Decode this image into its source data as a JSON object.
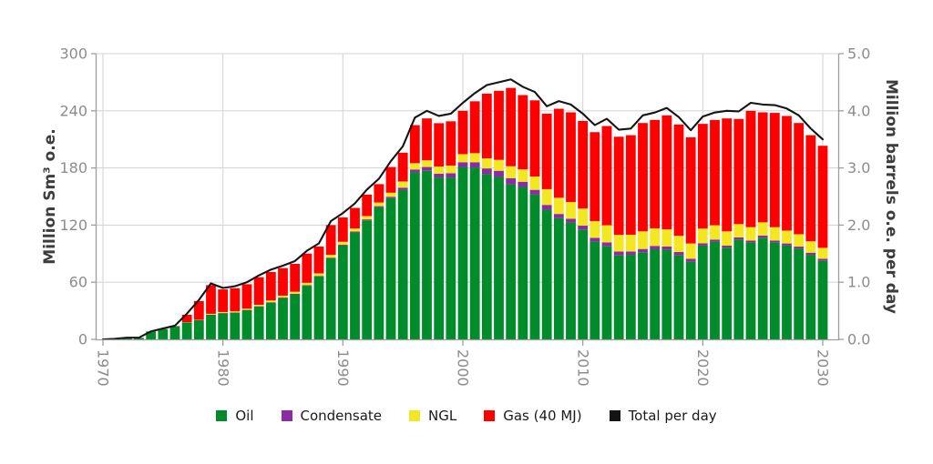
{
  "figure": {
    "background": "#ffffff"
  },
  "chart_data": {
    "type": "bar",
    "stacked": true,
    "title": "",
    "x": [
      1970,
      1971,
      1972,
      1973,
      1974,
      1975,
      1976,
      1977,
      1978,
      1979,
      1980,
      1981,
      1982,
      1983,
      1984,
      1985,
      1986,
      1987,
      1988,
      1989,
      1990,
      1991,
      1992,
      1993,
      1994,
      1995,
      1996,
      1997,
      1998,
      1999,
      2000,
      2001,
      2002,
      2003,
      2004,
      2005,
      2006,
      2007,
      2008,
      2009,
      2010,
      2011,
      2012,
      2013,
      2014,
      2015,
      2016,
      2017,
      2018,
      2019,
      2020,
      2021,
      2022,
      2023,
      2024,
      2025,
      2026,
      2027,
      2028,
      2029,
      2030
    ],
    "series": [
      {
        "name": "Oil",
        "color": "#008c2b",
        "values": [
          0,
          0.3,
          1.5,
          1.6,
          8.3,
          10.5,
          13.7,
          17.9,
          20.1,
          25.9,
          27.5,
          28.1,
          30.7,
          34.5,
          38.6,
          43.4,
          47.3,
          56.3,
          65.9,
          85,
          98.5,
          112.2,
          124.9,
          138.7,
          148.3,
          156.8,
          175.4,
          177,
          170,
          170,
          181,
          180.5,
          173.5,
          170.5,
          162.8,
          160,
          152,
          136.2,
          127.2,
          122.7,
          115.4,
          102.6,
          97.8,
          88.2,
          88.8,
          91.4,
          94.6,
          94,
          88.2,
          81.4,
          98.5,
          102.6,
          96.2,
          104.8,
          101.6,
          106.7,
          101.6,
          98.5,
          95.2,
          88.8,
          82.4
        ]
      },
      {
        "name": "Condensate",
        "color": "#8c2ba6",
        "values": [
          0,
          0,
          0,
          0,
          0,
          0,
          0,
          0,
          0,
          0.1,
          0.2,
          0.2,
          0.3,
          0.3,
          0.4,
          0.5,
          0.5,
          0.6,
          0.7,
          0.8,
          0.9,
          1,
          1.1,
          1.2,
          1.5,
          2.5,
          3,
          4,
          4,
          4.5,
          5,
          5.5,
          6,
          6.5,
          6.5,
          5.5,
          5,
          5,
          4.5,
          4,
          4,
          4,
          4,
          4,
          3.5,
          3.5,
          3.5,
          3.5,
          3.5,
          3.3,
          2.3,
          2.2,
          2.2,
          2.2,
          2.2,
          2.2,
          2.2,
          2.2,
          2.2,
          2.2,
          2.2
        ]
      },
      {
        "name": "NGL",
        "color": "#f2e720",
        "values": [
          0,
          0,
          0,
          0,
          0,
          0,
          0,
          0.2,
          0.4,
          0.8,
          1,
          1.1,
          1.2,
          1.5,
          1.8,
          2,
          2.2,
          2.5,
          2.7,
          3,
          3.1,
          3.2,
          3.5,
          3.8,
          4.2,
          6.5,
          6.6,
          7,
          7.5,
          8,
          8.5,
          9.5,
          10.5,
          11.5,
          12.5,
          13,
          14,
          16.5,
          17,
          17.5,
          18,
          17.5,
          18,
          17.5,
          17.5,
          18.5,
          18.5,
          18,
          17,
          16,
          15.5,
          15,
          15,
          14,
          14,
          14,
          14,
          13.5,
          13,
          12,
          11.5
        ]
      },
      {
        "name": "Gas (40 MJ)",
        "color": "#ff0000",
        "values": [
          0,
          0,
          0,
          0,
          0,
          0.3,
          0.3,
          7.8,
          19.8,
          30.1,
          23.8,
          24.3,
          25.7,
          28.9,
          29.9,
          28.9,
          29.3,
          30.6,
          28.2,
          31.2,
          25.5,
          21.6,
          22.5,
          19.3,
          27,
          30.2,
          40,
          44,
          45.5,
          46.5,
          45.5,
          54.5,
          68,
          72.5,
          82.2,
          78,
          80,
          79.3,
          93.5,
          94.2,
          92,
          93.5,
          104.2,
          103.1,
          104.6,
          113.8,
          113.8,
          119.7,
          116.9,
          111.5,
          110,
          110.6,
          118.6,
          110.4,
          122.2,
          115.5,
          120,
          120.4,
          116.8,
          111.4,
          107.2
        ]
      }
    ],
    "line_series": {
      "name": "Total per day",
      "color": "#141414",
      "axis": "right",
      "values": [
        0,
        0.01,
        0.03,
        0.03,
        0.14,
        0.19,
        0.24,
        0.45,
        0.69,
        0.98,
        0.9,
        0.93,
        1,
        1.12,
        1.22,
        1.29,
        1.37,
        1.55,
        1.68,
        2.07,
        2.21,
        2.38,
        2.62,
        2.81,
        3.12,
        3.38,
        3.88,
        4,
        3.91,
        3.95,
        4.14,
        4.31,
        4.45,
        4.5,
        4.55,
        4.42,
        4.33,
        4.08,
        4.17,
        4.11,
        3.95,
        3.75,
        3.86,
        3.67,
        3.69,
        3.92,
        3.97,
        4.05,
        3.89,
        3.66,
        3.9,
        3.97,
        4,
        3.99,
        4.14,
        4.11,
        4.1,
        4.04,
        3.92,
        3.69,
        3.5
      ]
    },
    "left_axis": {
      "label": "Million Sm³ o.e.",
      "min": 0,
      "max": 300,
      "ticks": [
        "0",
        "60",
        "120",
        "180",
        "240",
        "300"
      ],
      "tick_values": [
        0,
        60,
        120,
        180,
        240,
        300
      ]
    },
    "right_axis": {
      "label": "Million barrels o.e. per day",
      "min": 0,
      "max": 5,
      "ticks": [
        "0.0",
        "1.0",
        "2.0",
        "3.0",
        "4.0",
        "5.0"
      ],
      "tick_values": [
        0,
        1,
        2,
        3,
        4,
        5
      ]
    },
    "x_axis": {
      "tick_years": [
        1970,
        1980,
        1990,
        2000,
        2010,
        2020,
        2030
      ],
      "label_rotation": 90
    },
    "grid": true,
    "legend_position": "bottom"
  },
  "style_colors": {
    "grid": "#d6d6d6",
    "spine": "#9e9e9e",
    "tick_label": "#8c8c8c",
    "axis_title": "#3d3d3d",
    "legend_text": "#1a1a1a"
  }
}
